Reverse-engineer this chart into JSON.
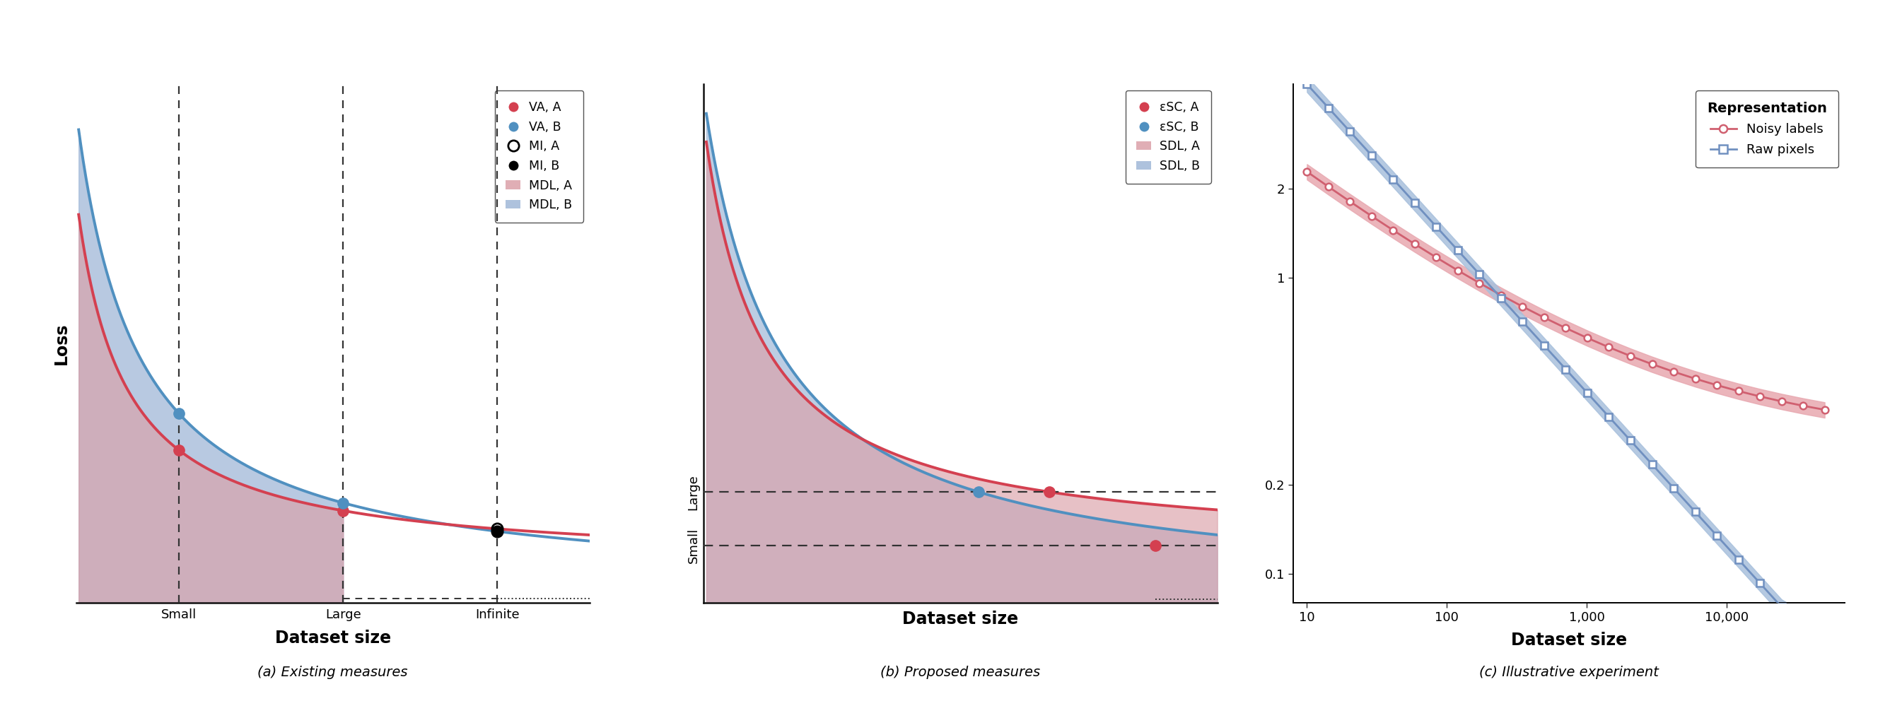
{
  "fig_width": 26.9,
  "fig_height": 9.92,
  "bg_color": "#ffffff",
  "red_line_color": "#d44050",
  "blue_line_color": "#5090c0",
  "red_fill": "#dba0a8",
  "blue_fill": "#a0b8d8",
  "panel_a_caption": "(a) Existing measures",
  "panel_b_caption": "(b) Proposed measures",
  "panel_c_caption": "(c) Illustrative experiment",
  "panel_a_xlabel": "Dataset size",
  "panel_a_ylabel": "Loss",
  "panel_b_xlabel": "Dataset size",
  "panel_c_xlabel": "Dataset size",
  "panel_c_legend_title": "Representation",
  "panel_c_legend_noisy": "Noisy labels",
  "panel_c_legend_raw": "Raw pixels",
  "panel_c_noisy_color": "#d06070",
  "panel_c_raw_color": "#7090c0",
  "panel_c_noisy_fill": "#e8a8b0",
  "panel_c_raw_fill": "#a8c0dc"
}
